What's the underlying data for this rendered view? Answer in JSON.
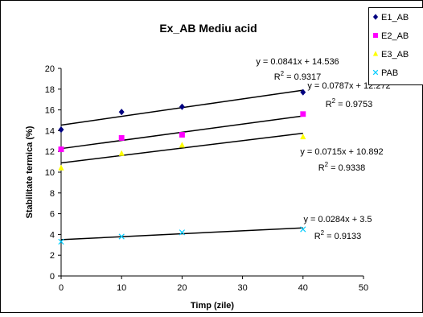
{
  "chart_data": {
    "type": "scatter",
    "title": "Ex_AB Mediu acid",
    "xlabel": "Timp (zile)",
    "ylabel": "Stabilitate termica (%)",
    "xlim": [
      0,
      50
    ],
    "ylim": [
      0,
      20
    ],
    "x_ticks": [
      "0",
      "10",
      "20",
      "30",
      "40",
      "50"
    ],
    "y_ticks": [
      "0",
      "2",
      "4",
      "6",
      "8",
      "10",
      "12",
      "14",
      "16",
      "18",
      "20"
    ],
    "grid": false,
    "legend_position": "top-right",
    "series": [
      {
        "name": "E1_AB",
        "color": "#000080",
        "marker": "diamond",
        "x": [
          0,
          10,
          20,
          40
        ],
        "y": [
          14.1,
          15.8,
          16.3,
          17.7
        ],
        "trend": {
          "slope": 0.0841,
          "intercept": 14.536
        },
        "equation": "y = 0.0841x + 14.536",
        "r2_label": "R",
        "r2_sup": "2",
        "r2_value": " = 0.9317"
      },
      {
        "name": "E2_AB",
        "color": "#FF00FF",
        "marker": "square",
        "x": [
          0,
          10,
          20,
          40
        ],
        "y": [
          12.2,
          13.3,
          13.6,
          15.6
        ],
        "trend": {
          "slope": 0.0787,
          "intercept": 12.272
        },
        "equation": "y = 0.0787x + 12.272",
        "r2_label": "R",
        "r2_sup": "2",
        "r2_value": " = 0.9753"
      },
      {
        "name": "E3_AB",
        "color": "#FFFF00",
        "marker": "triangle",
        "x": [
          0,
          10,
          20,
          40
        ],
        "y": [
          10.4,
          11.8,
          12.6,
          13.4
        ],
        "trend": {
          "slope": 0.0715,
          "intercept": 10.892
        },
        "equation": "y = 0.0715x + 10.892",
        "r2_label": "R",
        "r2_sup": "2",
        "r2_value": " = 0.9338"
      },
      {
        "name": "PAB",
        "color": "#00CCFF",
        "marker": "x",
        "x": [
          0,
          10,
          20,
          40
        ],
        "y": [
          3.3,
          3.8,
          4.2,
          4.5
        ],
        "trend": {
          "slope": 0.0284,
          "intercept": 3.5
        },
        "equation": "y = 0.0284x + 3.5",
        "r2_label": "R",
        "r2_sup": "2",
        "r2_value": " = 0.9133"
      }
    ]
  }
}
